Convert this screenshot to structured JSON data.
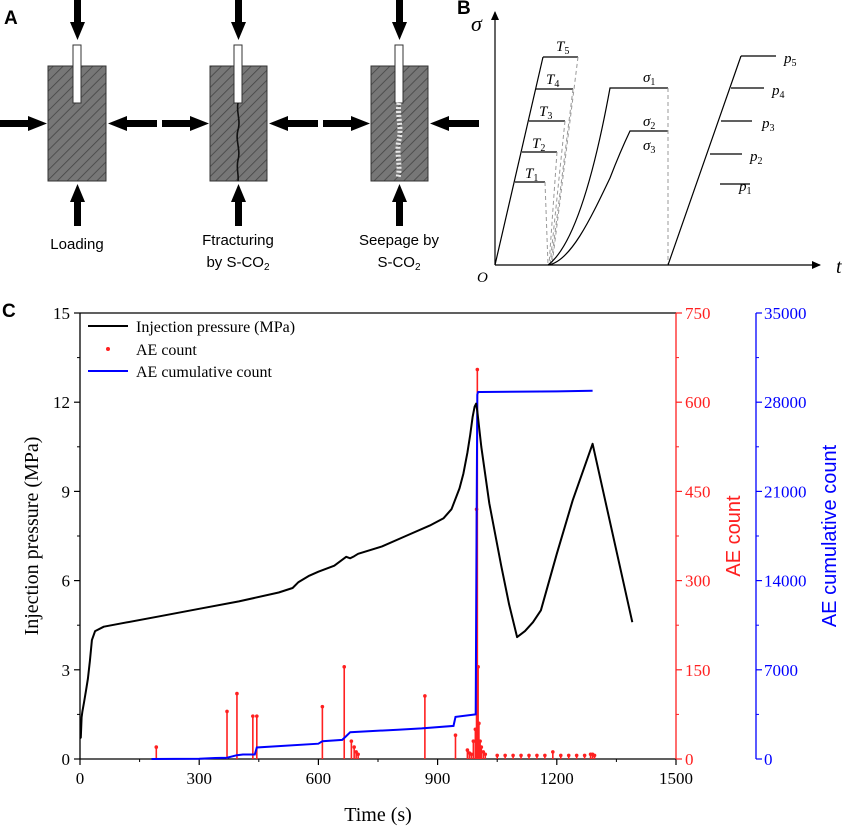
{
  "panels": {
    "a": {
      "letter": "A",
      "labels": {
        "loading": "Loading",
        "frac_1": "Ftracturing",
        "frac_2": "by S-CO",
        "frac_sub": "2",
        "seep_1": "Seepage by",
        "seep_2": "S-CO",
        "seep_sub": "2"
      }
    },
    "b": {
      "letter": "B",
      "y_axis": "σ",
      "x_axis": "t",
      "origin": "O",
      "t_labels": [
        {
          "base": "T",
          "sub": "1"
        },
        {
          "base": "T",
          "sub": "2"
        },
        {
          "base": "T",
          "sub": "3"
        },
        {
          "base": "T",
          "sub": "4"
        },
        {
          "base": "T",
          "sub": "5"
        }
      ],
      "sigma_labels": [
        {
          "base": "σ",
          "sub": "1"
        },
        {
          "base": "σ",
          "sub": "2"
        },
        {
          "base": "σ",
          "sub": "3"
        }
      ],
      "p_labels": [
        {
          "base": "p",
          "sub": "1"
        },
        {
          "base": "p",
          "sub": "2"
        },
        {
          "base": "p",
          "sub": "3"
        },
        {
          "base": "p",
          "sub": "4"
        },
        {
          "base": "p",
          "sub": "5"
        }
      ]
    },
    "c": {
      "letter": "C"
    }
  },
  "chart_data": {
    "type": "line",
    "xlabel": "Time (s)",
    "xlim": [
      0,
      1500
    ],
    "xticks": [
      0,
      300,
      600,
      900,
      1200,
      1500
    ],
    "ylabel_left": "Injection pressure (MPa)",
    "ylim_left": [
      0,
      15
    ],
    "yticks_left": [
      0,
      3,
      6,
      9,
      12,
      15
    ],
    "ylabel_right1": "AE count",
    "ylim_right1": [
      0,
      750
    ],
    "yticks_right1": [
      0,
      150,
      300,
      450,
      600,
      750
    ],
    "ylabel_right2": "AE cumulative count",
    "ylim_right2": [
      0,
      35000
    ],
    "yticks_right2": [
      0,
      7000,
      14000,
      21000,
      28000,
      35000
    ],
    "legend": [
      "Injection pressure (MPa)",
      "AE count",
      "AE cumulative count"
    ],
    "colors": {
      "pressure": "#000000",
      "ae": "#ff2020",
      "cumulative": "#0000ff",
      "axis_right1": "#ff2020",
      "axis_right2": "#0000ff"
    },
    "series": [
      {
        "name": "Injection pressure (MPa)",
        "axis": "left",
        "x": [
          0,
          2,
          4,
          6,
          10,
          15,
          20,
          25,
          30,
          38,
          60,
          100,
          200,
          300,
          400,
          500,
          535,
          550,
          575,
          600,
          640,
          670,
          680,
          690,
          700,
          760,
          820,
          880,
          915,
          935,
          955,
          965,
          975,
          982,
          988,
          993,
          997,
          1000,
          1010,
          1030,
          1060,
          1080,
          1100,
          1120,
          1140,
          1160,
          1200,
          1240,
          1290,
          1320,
          1360,
          1390
        ],
        "values": [
          0.7,
          0.72,
          1.4,
          1.6,
          1.9,
          2.3,
          2.7,
          3.3,
          4.0,
          4.3,
          4.45,
          4.55,
          4.8,
          5.05,
          5.3,
          5.6,
          5.75,
          5.95,
          6.15,
          6.3,
          6.5,
          6.8,
          6.75,
          6.82,
          6.9,
          7.15,
          7.5,
          7.85,
          8.1,
          8.4,
          9.1,
          9.6,
          10.3,
          10.9,
          11.5,
          11.85,
          11.95,
          11.7,
          10.5,
          8.6,
          6.5,
          5.2,
          4.1,
          4.3,
          4.6,
          5.0,
          6.9,
          8.7,
          10.6,
          8.8,
          6.4,
          4.6
        ]
      },
      {
        "name": "AE count",
        "axis": "right1",
        "x": [
          192,
          370,
          395,
          435,
          445,
          610,
          665,
          683,
          690,
          695,
          700,
          868,
          945,
          975,
          980,
          985,
          990,
          995,
          998,
          1000,
          1002,
          1004,
          1007,
          1010,
          1015,
          1020,
          1050,
          1070,
          1090,
          1110,
          1130,
          1150,
          1170,
          1190,
          1210,
          1230,
          1250,
          1270,
          1285,
          1290,
          1295
        ],
        "values": [
          20,
          80,
          110,
          72,
          72,
          88,
          155,
          30,
          20,
          12,
          8,
          106,
          40,
          15,
          10,
          8,
          30,
          50,
          420,
          655,
          155,
          60,
          30,
          20,
          12,
          8,
          6,
          6,
          6,
          6,
          6,
          6,
          6,
          12,
          6,
          6,
          6,
          6,
          8,
          8,
          6
        ]
      },
      {
        "name": "AE cumulative count",
        "axis": "right2",
        "x": [
          180,
          300,
          340,
          370,
          395,
          410,
          440,
          445,
          600,
          610,
          660,
          670,
          680,
          800,
          860,
          940,
          945,
          996,
          998,
          1000,
          1002,
          1010,
          1200,
          1290
        ],
        "values": [
          0,
          20,
          80,
          100,
          300,
          350,
          350,
          900,
          1200,
          1400,
          1500,
          1800,
          2100,
          2300,
          2400,
          2600,
          3300,
          3500,
          17000,
          28600,
          28800,
          28800,
          28850,
          28900
        ]
      }
    ]
  }
}
